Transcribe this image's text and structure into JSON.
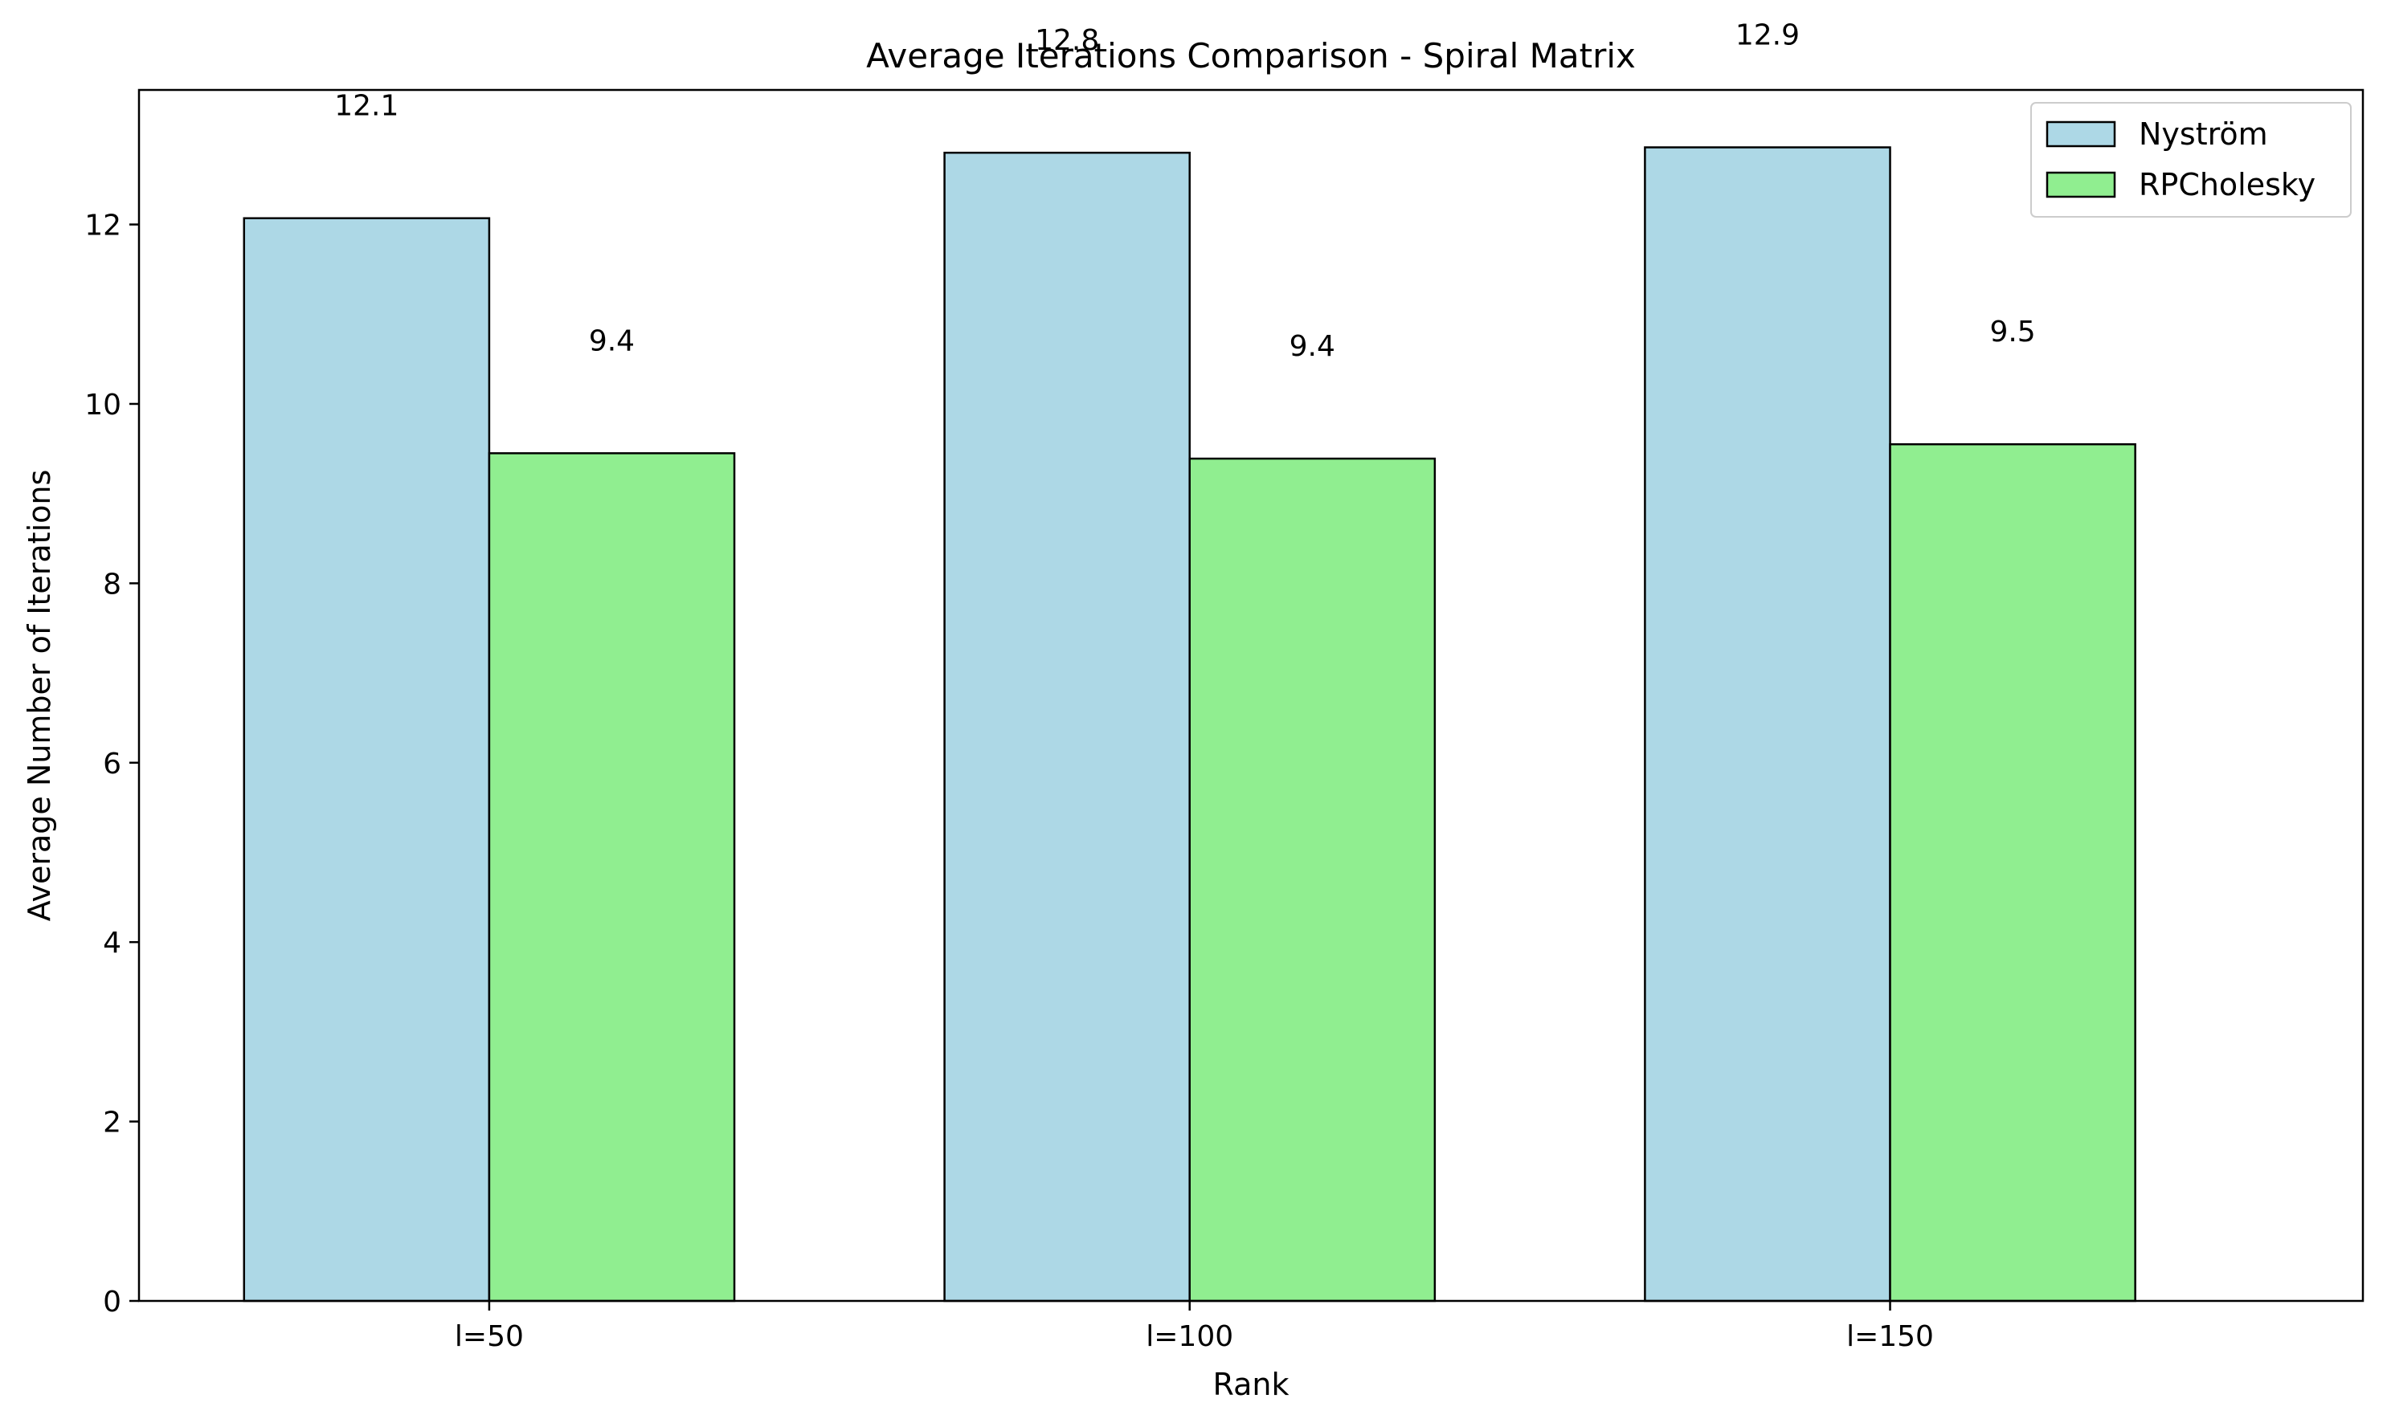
{
  "chart_data": {
    "type": "bar",
    "title": "Average Iterations Comparison - Spiral Matrix",
    "xlabel": "Rank",
    "ylabel": "Average Number of Iterations",
    "categories": [
      "l=50",
      "l=100",
      "l=150"
    ],
    "series": [
      {
        "name": "Nyström",
        "values": [
          12.07,
          12.8,
          12.86
        ],
        "labels": [
          "12.1",
          "12.8",
          "12.9"
        ],
        "color": "#add8e6"
      },
      {
        "name": "RPCholesky",
        "values": [
          9.45,
          9.39,
          9.55
        ],
        "labels": [
          "9.4",
          "9.4",
          "9.5"
        ],
        "color": "#90ee90"
      }
    ],
    "ylim": [
      0,
      13.5
    ],
    "yticks": [
      0,
      2,
      4,
      6,
      8,
      10,
      12
    ],
    "grid": false,
    "legend": "top-right",
    "edge_color": "#000000"
  }
}
